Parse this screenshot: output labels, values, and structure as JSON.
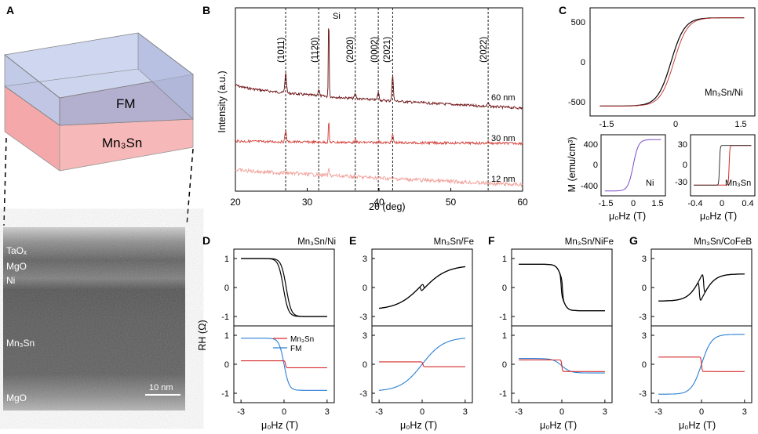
{
  "panels": {
    "A": {
      "letter": "A",
      "layers": {
        "top": "FM",
        "bottom": "Mn₃Sn"
      },
      "tem_labels": [
        "TaOₓ",
        "MgO",
        "Ni",
        "Mn₃Sn",
        "MgO"
      ],
      "scalebar": "10 nm"
    },
    "B": {
      "letter": "B",
      "ylabel": "Intensity (a.u.)",
      "xlabel": "2θ (deg)",
      "xticks": [
        "20",
        "30",
        "40",
        "50",
        "60"
      ],
      "peaks": [
        "(1011)",
        "(1120)",
        "(2020)",
        "(0002)",
        "(2021)",
        "(2022)"
      ],
      "si_label": "Si",
      "thickness": [
        "60 nm",
        "30 nm",
        "12 nm"
      ]
    },
    "C": {
      "letter": "C",
      "ylabel": "M (emu/cm³)",
      "main_label": "Mn₃Sn/Ni",
      "main_xticks": [
        "-1.5",
        "0",
        "1.5"
      ],
      "main_yticks": [
        "500",
        "0",
        "-500"
      ],
      "small_labels": [
        "Ni",
        "Mn₃Sn"
      ],
      "small_left_xticks": [
        "-1.5",
        "0",
        "1.5"
      ],
      "small_left_yticks": [
        "400",
        "0",
        "-400"
      ],
      "small_right_xticks": [
        "-0.4",
        "0",
        "0.4"
      ],
      "small_right_yticks": [
        "30",
        "0",
        "-30"
      ],
      "xlabel": "μ₀Hz (T)"
    },
    "D": {
      "letter": "D",
      "title": "Mn₃Sn/Ni",
      "yticks_top": [
        "1",
        "0",
        "-1"
      ],
      "yticks_bottom": [
        "1",
        "0",
        "-1"
      ],
      "legend": [
        "Mn₃Sn",
        "FM"
      ]
    },
    "E": {
      "letter": "E",
      "title": "Mn₃Sn/Fe",
      "yticks_top": [
        "3",
        "0",
        "-3"
      ],
      "yticks_bottom": [
        "3",
        "0",
        "-3"
      ]
    },
    "F": {
      "letter": "F",
      "title": "Mn₃Sn/NiFe",
      "yticks_top": [
        "1",
        "0",
        "-1"
      ],
      "yticks_bottom": [
        "1",
        "0",
        "-1"
      ]
    },
    "G": {
      "letter": "G",
      "title": "Mn₃Sn/CoFeB",
      "yticks_top": [
        "3",
        "0",
        "-3"
      ],
      "yticks_bottom": [
        "3",
        "0",
        "-3"
      ]
    },
    "RH_label": "RH (Ω)",
    "bottom_xticks": [
      "-3",
      "0",
      "3"
    ],
    "bottom_xlabel": "μ₀Hz (T)"
  },
  "chart_data": [
    {
      "type": "line",
      "panel": "B",
      "xlabel": "2θ (deg)",
      "ylabel": "Intensity (a.u.)",
      "xlim": [
        20,
        60
      ],
      "peak_positions": [
        27,
        31.6,
        36.7,
        39.9,
        41.9,
        55.2
      ],
      "si_peak": 33,
      "series": [
        {
          "name": "60 nm",
          "color": "#6b0f12"
        },
        {
          "name": "30 nm",
          "color": "#d4403a"
        },
        {
          "name": "12 nm",
          "color": "#f0a09a"
        }
      ]
    },
    {
      "type": "line",
      "panel": "C",
      "xlabel": "μ₀Hz (T)",
      "ylabel": "M (emu/cm³)",
      "xlim": [
        -1.7,
        1.7
      ],
      "ylim": [
        -600,
        600
      ],
      "saturation": 490,
      "series": [
        {
          "name": "Mn₃Sn/Ni"
        }
      ]
    },
    {
      "type": "line",
      "panel": "D-G",
      "xlabel": "μ₀Hz (T)",
      "ylabel": "RH (Ω)",
      "xlim": [
        -3.5,
        3.5
      ],
      "series": [
        {
          "name": "Mn₃Sn",
          "color": "#d62a2a"
        },
        {
          "name": "FM",
          "color": "#2a7fd4"
        }
      ]
    }
  ]
}
